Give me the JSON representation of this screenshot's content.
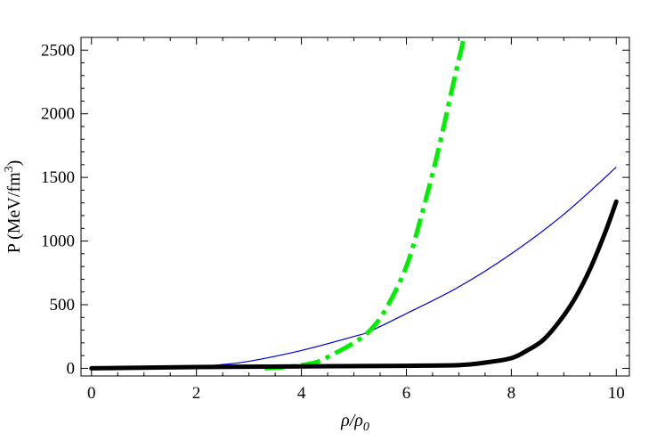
{
  "chart_data": {
    "type": "line",
    "title": "",
    "xlabel": {
      "base": "ρ/ρ",
      "sub": "0"
    },
    "ylabel": {
      "base": "P (MeV/fm",
      "sup": "3",
      "tail": ")"
    },
    "xlim": [
      -0.2,
      10.25
    ],
    "ylim": [
      -60,
      2600
    ],
    "grid": false,
    "legend": "none",
    "x_ticks": [
      0,
      2,
      4,
      6,
      8,
      10
    ],
    "y_ticks": [
      0,
      500,
      1000,
      1500,
      2000,
      2500
    ],
    "series": [
      {
        "color": "#0000cc",
        "style": "solid-thin",
        "x": [
          0,
          1,
          2,
          2.5,
          3,
          4,
          5,
          5.3,
          6,
          7,
          8,
          9,
          10
        ],
        "y": [
          0,
          5,
          15,
          30,
          55,
          140,
          250,
          290,
          430,
          640,
          900,
          1210,
          1580
        ]
      },
      {
        "color": "#00ee00",
        "style": "dashdot-thick",
        "x": [
          3.3,
          3.7,
          4.0,
          4.3,
          4.6,
          5.0,
          5.3,
          5.6,
          6.0,
          6.3,
          6.6,
          6.9,
          7.1
        ],
        "y": [
          0,
          10,
          25,
          50,
          110,
          200,
          295,
          460,
          800,
          1220,
          1700,
          2250,
          2600
        ]
      },
      {
        "color": "#000000",
        "style": "solid-thick",
        "x": [
          0,
          2,
          4,
          6,
          7,
          7.5,
          8,
          8.3,
          8.6,
          8.9,
          9.2,
          9.5,
          9.8,
          10
        ],
        "y": [
          0,
          10,
          15,
          20,
          25,
          45,
          80,
          140,
          220,
          360,
          540,
          780,
          1080,
          1310
        ]
      }
    ]
  }
}
